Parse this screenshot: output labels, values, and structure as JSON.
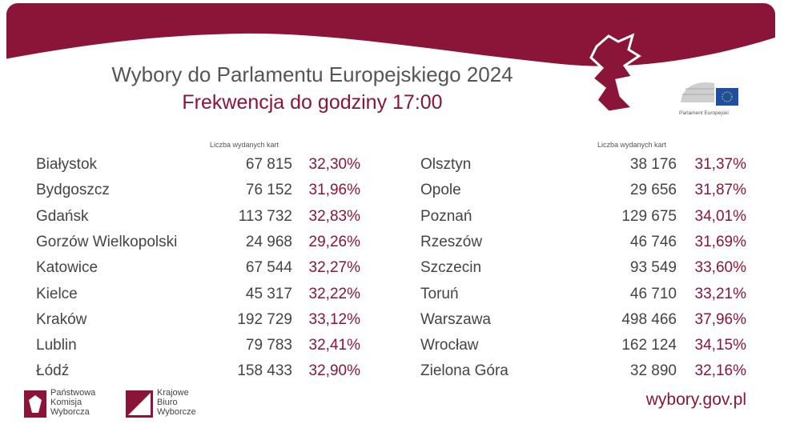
{
  "header": {
    "title": "Wybory do Parlamentu Europejskiego 2024",
    "subtitle": "Frekwencja do godziny 17:00"
  },
  "tables": [
    {
      "column_header": "Liczba wydanych kart",
      "rows": [
        [
          "Białystok",
          "67 815",
          "32,30%"
        ],
        [
          "Bydgoszcz",
          "76 152",
          "31,96%"
        ],
        [
          "Gdańsk",
          "113 732",
          "32,83%"
        ],
        [
          "Gorzów Wielkopolski",
          "24 968",
          "29,26%"
        ],
        [
          "Katowice",
          "67 544",
          "32,27%"
        ],
        [
          "Kielce",
          "45 317",
          "32,22%"
        ],
        [
          "Kraków",
          "192 729",
          "33,12%"
        ],
        [
          "Lublin",
          "79 783",
          "32,41%"
        ],
        [
          "Łódź",
          "158 433",
          "32,90%"
        ]
      ]
    },
    {
      "column_header": "Liczba wydanych kart",
      "rows": [
        [
          "Olsztyn",
          "38 176",
          "31,37%"
        ],
        [
          "Opole",
          "29 656",
          "31,87%"
        ],
        [
          "Poznań",
          "129 675",
          "34,01%"
        ],
        [
          "Rzeszów",
          "46 746",
          "31,69%"
        ],
        [
          "Szczecin",
          "93 549",
          "33,60%"
        ],
        [
          "Toruń",
          "46 710",
          "33,21%"
        ],
        [
          "Warszawa",
          "498 466",
          "37,96%"
        ],
        [
          "Wrocław",
          "162 124",
          "34,15%"
        ],
        [
          "Zielona Góra",
          "32 890",
          "32,16%"
        ]
      ]
    }
  ],
  "logos": {
    "parliament": "Parlament Europejski",
    "pkw": [
      "Państwowa",
      "Komisja",
      "Wyborcza"
    ],
    "kbw": [
      "Krajowe",
      "Biuro",
      "Wyborcze"
    ]
  },
  "footer": {
    "url": "wybory.gov.pl"
  }
}
